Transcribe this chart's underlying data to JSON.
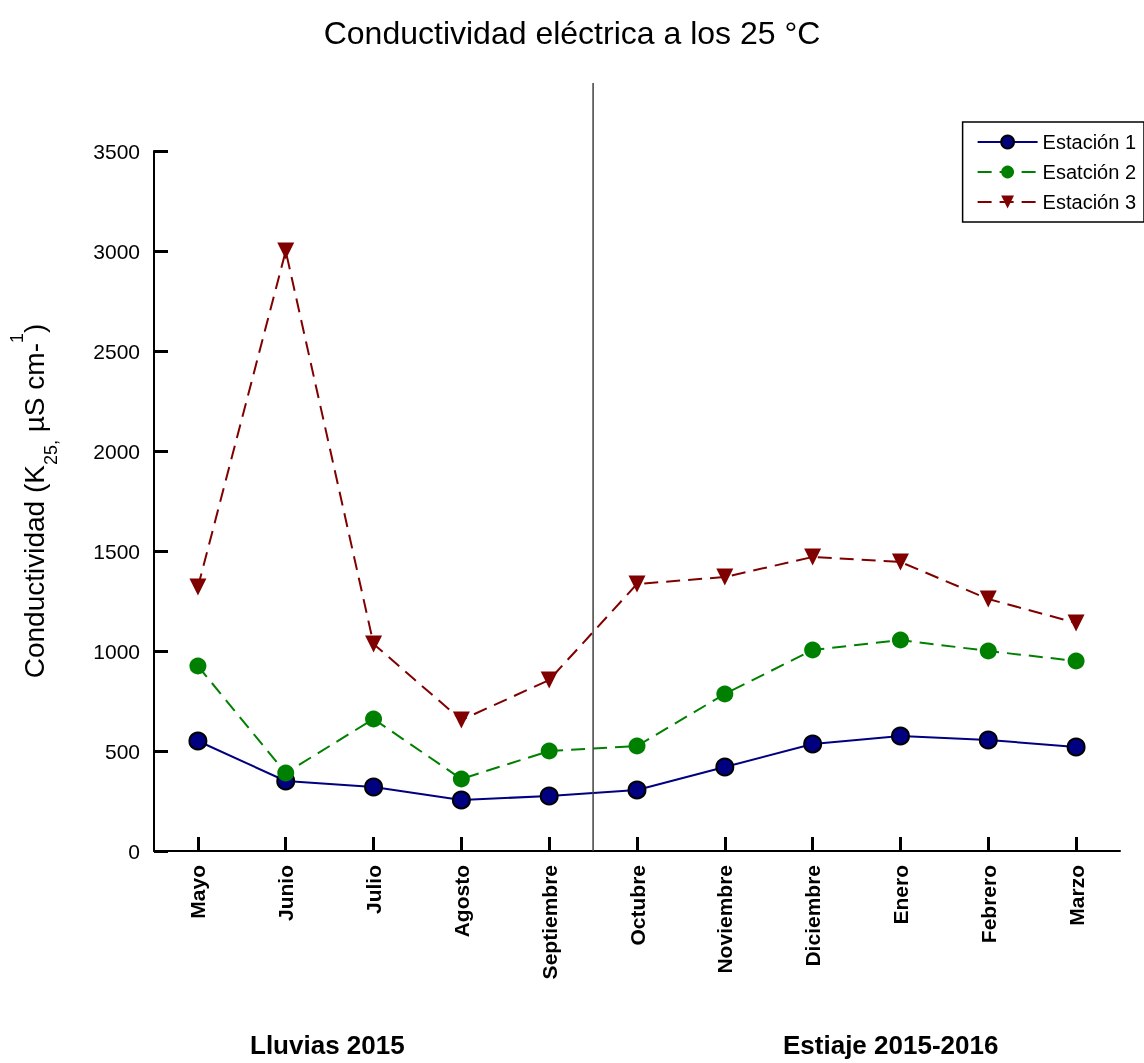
{
  "chart_data": {
    "type": "line",
    "title": "Conductividad eléctrica a los 25 °C",
    "ylabel": "Conductividad (K$_{25,}$ µS cm-$^{1}$)",
    "categories": [
      "Mayo",
      "Junio",
      "Julio",
      "Agosto",
      "Septiembre",
      "Octubre",
      "Noviembre",
      "Diciembre",
      "Enero",
      "Febrero",
      "Marzo"
    ],
    "series": [
      {
        "name": "Estación 1",
        "color": "#000080",
        "marker": "circle",
        "line_style": "solid",
        "values": [
          550,
          350,
          320,
          255,
          275,
          305,
          420,
          535,
          575,
          555,
          520
        ]
      },
      {
        "name": "Esatción 2",
        "color": "#008000",
        "marker": "circle",
        "line_style": "dashed",
        "values": [
          925,
          390,
          660,
          360,
          500,
          525,
          785,
          1005,
          1055,
          1000,
          950
        ]
      },
      {
        "name": "Estación 3",
        "color": "#800000",
        "marker": "triangle",
        "line_style": "dashed",
        "values": [
          1320,
          3000,
          1035,
          655,
          855,
          1335,
          1370,
          1470,
          1445,
          1260,
          1140
        ]
      }
    ],
    "ylim": [
      0,
      3500
    ],
    "yticks": [
      0,
      500,
      1000,
      1500,
      2000,
      2500,
      3000,
      3500
    ],
    "grid": false,
    "legend": "top right",
    "annotations": [
      "Lluvias 2015",
      "Estiaje 2015-2016"
    ]
  }
}
